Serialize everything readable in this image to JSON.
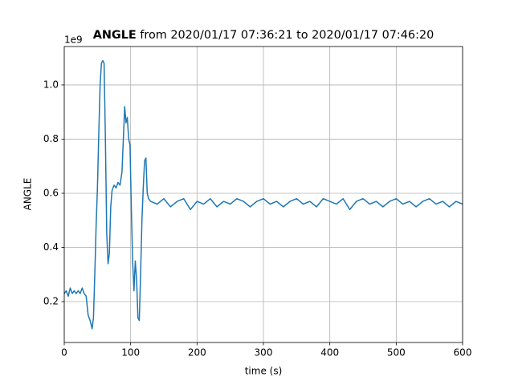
{
  "chart_data": {
    "type": "line",
    "title": [
      "ANGLE",
      "from 2020/01/17 07:36:21 to 2020/01/17 07:46:20"
    ],
    "x_label": "time (s)",
    "y_label": "ANGLE",
    "y_offset_label": "1e9",
    "xlim": [
      0,
      600
    ],
    "xticks": [
      0,
      100,
      200,
      300,
      400,
      500,
      600
    ],
    "ylim": [
      0.049,
      1.142
    ],
    "yticks": [
      0.2,
      0.4,
      0.6,
      0.8,
      {
        "value": 1.0,
        "label": "1.0"
      }
    ],
    "grid": true,
    "series": [
      {
        "name": "ANGLE",
        "color": "#1f77b4",
        "x": [
          0,
          3,
          6,
          9,
          12,
          15,
          18,
          21,
          24,
          27,
          30,
          33,
          36,
          39,
          42,
          44,
          46,
          48,
          50,
          52,
          54,
          56,
          58,
          60,
          62,
          64,
          66,
          68,
          70,
          72,
          75,
          78,
          81,
          84,
          87,
          89,
          91,
          93,
          95,
          97,
          99,
          101,
          103,
          105,
          107,
          109,
          111,
          113,
          115,
          117,
          119,
          121,
          123,
          125,
          127,
          130,
          140,
          150,
          160,
          170,
          180,
          190,
          200,
          210,
          220,
          230,
          240,
          250,
          260,
          270,
          280,
          290,
          300,
          310,
          320,
          330,
          340,
          350,
          360,
          370,
          380,
          390,
          400,
          410,
          420,
          430,
          440,
          450,
          460,
          470,
          480,
          490,
          500,
          510,
          520,
          530,
          540,
          550,
          560,
          570,
          580,
          590,
          600
        ],
        "values": [
          0.23,
          0.24,
          0.22,
          0.25,
          0.23,
          0.24,
          0.23,
          0.24,
          0.23,
          0.25,
          0.23,
          0.22,
          0.15,
          0.13,
          0.1,
          0.14,
          0.3,
          0.48,
          0.62,
          0.82,
          1.0,
          1.08,
          1.09,
          1.08,
          0.8,
          0.45,
          0.34,
          0.38,
          0.55,
          0.61,
          0.63,
          0.62,
          0.64,
          0.63,
          0.68,
          0.8,
          0.92,
          0.86,
          0.88,
          0.8,
          0.78,
          0.55,
          0.35,
          0.24,
          0.35,
          0.28,
          0.14,
          0.13,
          0.3,
          0.5,
          0.62,
          0.72,
          0.73,
          0.6,
          0.58,
          0.57,
          0.56,
          0.58,
          0.55,
          0.57,
          0.58,
          0.54,
          0.57,
          0.56,
          0.58,
          0.55,
          0.57,
          0.56,
          0.58,
          0.57,
          0.55,
          0.57,
          0.58,
          0.56,
          0.57,
          0.55,
          0.57,
          0.58,
          0.56,
          0.57,
          0.55,
          0.58,
          0.57,
          0.56,
          0.58,
          0.54,
          0.57,
          0.58,
          0.56,
          0.57,
          0.55,
          0.57,
          0.58,
          0.56,
          0.57,
          0.55,
          0.57,
          0.58,
          0.56,
          0.57,
          0.55,
          0.57,
          0.56
        ]
      }
    ]
  }
}
